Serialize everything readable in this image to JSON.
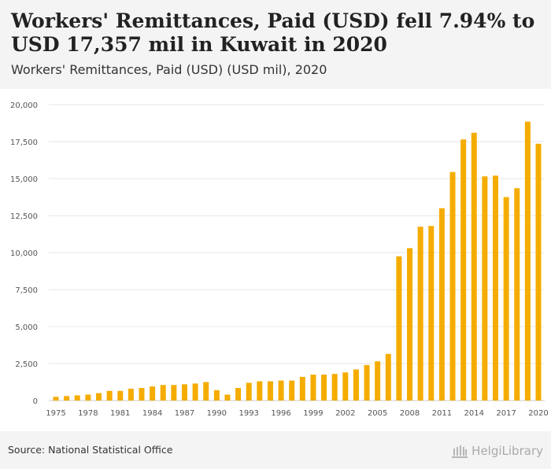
{
  "header": {
    "title": "Workers' Remittances, Paid (USD) fell 7.94% to USD 17,357 mil in Kuwait in 2020",
    "subtitle": "Workers' Remittances, Paid (USD) (USD mil), 2020"
  },
  "footer": {
    "source": "Source: National Statistical Office",
    "logo_text": "HelgiLibrary"
  },
  "colors": {
    "bar": "#f5ac00",
    "grid": "#e6e6e6",
    "axis_text": "#555555"
  },
  "chart_data": {
    "type": "bar",
    "x": [
      1975,
      1976,
      1977,
      1978,
      1979,
      1980,
      1981,
      1982,
      1983,
      1984,
      1985,
      1986,
      1987,
      1988,
      1989,
      1990,
      1991,
      1992,
      1993,
      1994,
      1995,
      1996,
      1997,
      1998,
      1999,
      2000,
      2001,
      2002,
      2003,
      2004,
      2005,
      2006,
      2007,
      2008,
      2009,
      2010,
      2011,
      2012,
      2013,
      2014,
      2015,
      2016,
      2017,
      2018,
      2019,
      2020
    ],
    "values": [
      250,
      300,
      350,
      400,
      500,
      650,
      650,
      800,
      850,
      950,
      1050,
      1050,
      1100,
      1150,
      1250,
      700,
      400,
      850,
      1200,
      1300,
      1300,
      1350,
      1350,
      1600,
      1750,
      1750,
      1800,
      1900,
      2100,
      2400,
      2650,
      3150,
      9750,
      10300,
      11750,
      11800,
      13000,
      15450,
      17650,
      18100,
      15150,
      15200,
      13750,
      14350,
      18850,
      17357
    ],
    "x_tick_labels": [
      "1975",
      "1978",
      "1981",
      "1984",
      "1987",
      "1990",
      "1993",
      "1996",
      "1999",
      "2002",
      "2005",
      "2008",
      "2011",
      "2014",
      "2017",
      "2020"
    ],
    "y_ticks": [
      0,
      2500,
      5000,
      7500,
      10000,
      12500,
      15000,
      17500,
      20000
    ],
    "y_tick_labels": [
      "0",
      "2,500",
      "5,000",
      "7,500",
      "10,000",
      "12,500",
      "15,000",
      "17,500",
      "20,000"
    ],
    "ylim": [
      0,
      20000
    ],
    "grid": true,
    "legend": "none"
  }
}
